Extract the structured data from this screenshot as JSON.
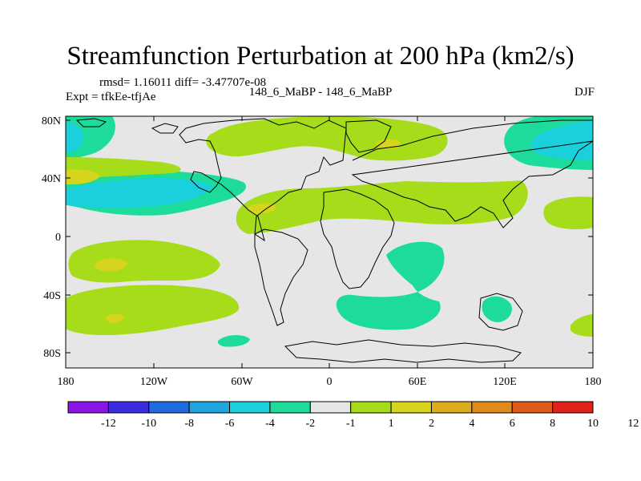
{
  "title": "Streamfunction Perturbation at 200 hPa (km2/s)",
  "stats": "rmsd= 1.16011 diff= -3.47707e-08",
  "expt": "Expt = tfkEe-tfjAe",
  "case": "148_6_MaBP - 148_6_MaBP",
  "season": "DJF",
  "lat_ticks": [
    "80N",
    "40N",
    "0",
    "40S",
    "80S"
  ],
  "lon_ticks": [
    "180",
    "120W",
    "60W",
    "0",
    "60E",
    "120E",
    "180"
  ],
  "colorbar": {
    "colors": [
      "#8a16e6",
      "#3a2de0",
      "#1e6ce0",
      "#1fa6e0",
      "#1ad0dc",
      "#1ddc9b",
      "#e6e6e6",
      "#a6dc1a",
      "#d6d41c",
      "#dcac1c",
      "#e08a1c",
      "#e05a1a",
      "#e0221a"
    ],
    "labels": [
      "-12",
      "-10",
      "-8",
      "-6",
      "-4",
      "-2",
      "-1",
      "1",
      "2",
      "4",
      "6",
      "8",
      "10",
      "12"
    ]
  },
  "colors": {
    "background": "#e6e6e6",
    "neg_light": "#1ddc9b",
    "neg_mid": "#1ad0dc",
    "pos_light": "#a6dc1a",
    "pos_mid": "#d6d41c"
  }
}
